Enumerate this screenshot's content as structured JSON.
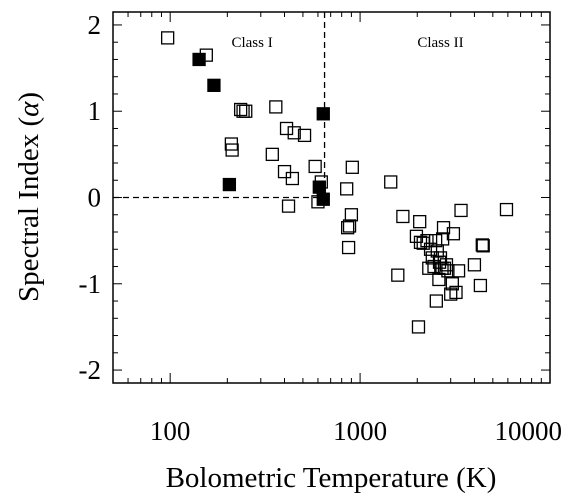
{
  "chart_data": {
    "type": "scatter",
    "xlabel": "Bolometric Temperature (K)",
    "ylabel_text": "Spectral Index (",
    "ylabel_symbol": "α",
    "ylabel_close": ")",
    "x_scale": "log",
    "xlim": [
      50,
      10000
    ],
    "ylim": [
      -2.15,
      2.15
    ],
    "x_ticks": [
      {
        "value": 100,
        "label": "100"
      },
      {
        "value": 1000,
        "label": "1000"
      },
      {
        "value": 10000,
        "label": "10000"
      }
    ],
    "y_ticks": [
      {
        "value": 2,
        "label": "2"
      },
      {
        "value": 1,
        "label": "1"
      },
      {
        "value": 0,
        "label": "0"
      },
      {
        "value": -1,
        "label": "-1"
      },
      {
        "value": -2,
        "label": "-2"
      }
    ],
    "grid": false,
    "region_labels": [
      {
        "text": "Class I",
        "x": 270,
        "y": 1.8
      },
      {
        "text": "Class II",
        "x": 2650,
        "y": 1.8
      }
    ],
    "divider": {
      "x_boundary": 650,
      "y_boundary": 0
    },
    "series": [
      {
        "marker": "filled-square",
        "points": [
          [
            142,
            1.6
          ],
          [
            170,
            1.3
          ],
          [
            205,
            0.15
          ],
          [
            640,
            0.97
          ],
          [
            610,
            0.12
          ],
          [
            640,
            -0.02
          ]
        ]
      },
      {
        "marker": "open-square",
        "points": [
          [
            97,
            1.85
          ],
          [
            155,
            1.65
          ],
          [
            210,
            0.62
          ],
          [
            212,
            0.55
          ],
          [
            235,
            1.02
          ],
          [
            242,
            1.0
          ],
          [
            250,
            1.0
          ],
          [
            345,
            0.5
          ],
          [
            360,
            1.05
          ],
          [
            400,
            0.3
          ],
          [
            410,
            0.8
          ],
          [
            420,
            -0.1
          ],
          [
            440,
            0.22
          ],
          [
            450,
            0.75
          ],
          [
            510,
            0.72
          ],
          [
            580,
            0.36
          ],
          [
            600,
            -0.05
          ],
          [
            625,
            0.18
          ],
          [
            850,
            0.1
          ],
          [
            860,
            -0.35
          ],
          [
            870,
            -0.58
          ],
          [
            880,
            -0.33
          ],
          [
            900,
            -0.2
          ],
          [
            910,
            0.35
          ],
          [
            1450,
            0.18
          ],
          [
            1580,
            -0.9
          ],
          [
            1680,
            -0.22
          ],
          [
            1980,
            -0.45
          ],
          [
            2030,
            -1.5
          ],
          [
            2060,
            -0.28
          ],
          [
            2080,
            -0.52
          ],
          [
            2150,
            -0.53
          ],
          [
            2250,
            -0.5
          ],
          [
            2300,
            -0.82
          ],
          [
            2350,
            -0.6
          ],
          [
            2400,
            -0.7
          ],
          [
            2450,
            -0.8
          ],
          [
            2500,
            -0.5
          ],
          [
            2520,
            -1.2
          ],
          [
            2550,
            -0.62
          ],
          [
            2600,
            -0.95
          ],
          [
            2620,
            -0.75
          ],
          [
            2650,
            -0.7
          ],
          [
            2700,
            -0.82
          ],
          [
            2720,
            -0.48
          ],
          [
            2750,
            -0.35
          ],
          [
            2780,
            -0.82
          ],
          [
            2850,
            -0.78
          ],
          [
            2900,
            -0.85
          ],
          [
            3000,
            -1.12
          ],
          [
            3060,
            -1.0
          ],
          [
            3100,
            -0.42
          ],
          [
            3200,
            -1.1
          ],
          [
            3300,
            -0.85
          ],
          [
            3400,
            -0.15
          ],
          [
            4000,
            -0.78
          ],
          [
            4300,
            -1.02
          ],
          [
            4400,
            -0.55
          ],
          [
            4450,
            -0.56
          ],
          [
            5900,
            -0.14
          ]
        ]
      }
    ]
  }
}
